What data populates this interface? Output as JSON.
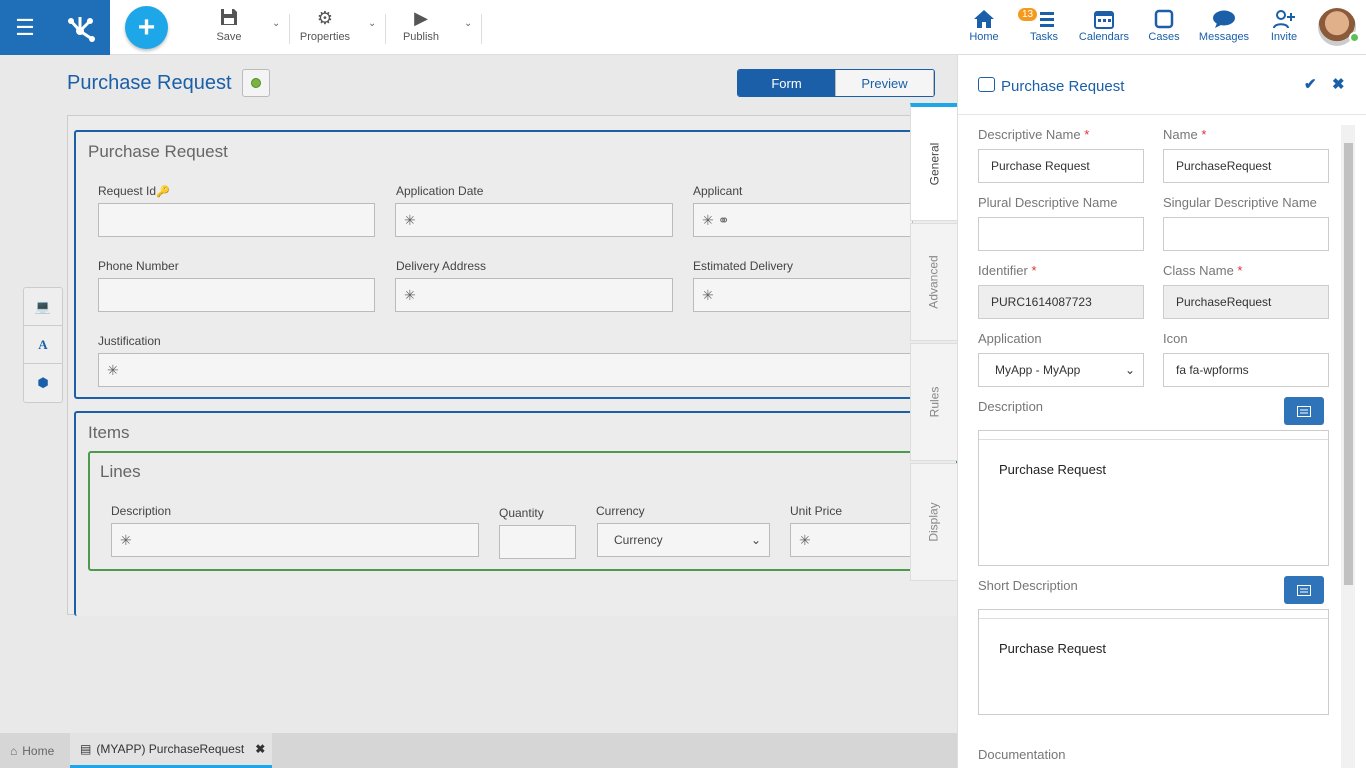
{
  "toolbar": {
    "save_label": "Save",
    "properties_label": "Properties",
    "publish_label": "Publish"
  },
  "nav": {
    "home_label": "Home",
    "tasks_label": "Tasks",
    "tasks_badge": "13",
    "calendars_label": "Calendars",
    "cases_label": "Cases",
    "messages_label": "Messages",
    "invite_label": "Invite"
  },
  "page": {
    "title": "Purchase Request",
    "view_tabs": [
      "Form",
      "Preview"
    ]
  },
  "form": {
    "section1": {
      "title": "Purchase Request",
      "fields": {
        "request_id": "Request Id",
        "application_date": "Application Date",
        "applicant": "Applicant",
        "phone_number": "Phone Number",
        "delivery_address": "Delivery Address",
        "estimated_delivery": "Estimated Delivery",
        "justification": "Justification"
      }
    },
    "section2": {
      "title": "Items",
      "lines_title": "Lines",
      "fields": {
        "description": "Description",
        "quantity": "Quantity",
        "currency": "Currency",
        "currency_value": "Currency",
        "unit_price": "Unit Price"
      }
    }
  },
  "vertical_tabs": [
    "General",
    "Advanced",
    "Rules",
    "Display"
  ],
  "panel": {
    "title": "Purchase Request",
    "descriptive_name_label": "Descriptive Name",
    "descriptive_name_value": "Purchase Request",
    "name_label": "Name",
    "name_value": "PurchaseRequest",
    "plural_label": "Plural Descriptive Name",
    "plural_value": "",
    "singular_label": "Singular Descriptive Name",
    "singular_value": "",
    "identifier_label": "Identifier",
    "identifier_value": "PURC1614087723",
    "class_name_label": "Class Name",
    "class_name_value": "PurchaseRequest",
    "application_label": "Application",
    "application_value": "MyApp - MyApp",
    "icon_label": "Icon",
    "icon_value": "fa fa-wpforms",
    "description_label": "Description",
    "description_value": "Purchase Request",
    "short_description_label": "Short Description",
    "short_description_value": "Purchase Request",
    "documentation_label": "Documentation"
  },
  "bottom_tabs": {
    "home_label": "Home",
    "active_label": "(MYAPP) PurchaseRequest"
  },
  "colors": {
    "brand_blue": "#1e6fb8",
    "accent_cyan": "#1ea7e8",
    "section_green": "#4d9a4d"
  }
}
